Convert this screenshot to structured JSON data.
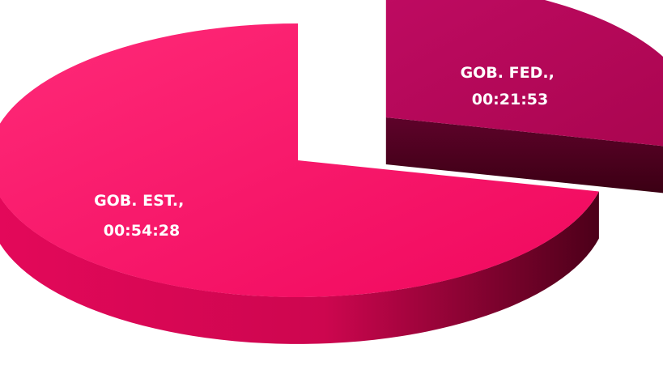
{
  "chart_data": {
    "type": "pie",
    "style": "3d-exploded",
    "title": "",
    "categories": [
      "GOB. FED.",
      "GOB. EST."
    ],
    "values": [
      "00:21:53",
      "00:54:28"
    ],
    "values_seconds": [
      1313,
      3268
    ],
    "data_labels": [
      [
        "GOB. FED.,",
        "00:21:53"
      ],
      [
        "GOB. EST.,",
        "00:54:28"
      ]
    ],
    "colors": {
      "GOB. FED.": "#b4075a",
      "GOB. EST.": "#f70d63"
    },
    "exploded_slice": "GOB. FED.",
    "legend": "none"
  }
}
